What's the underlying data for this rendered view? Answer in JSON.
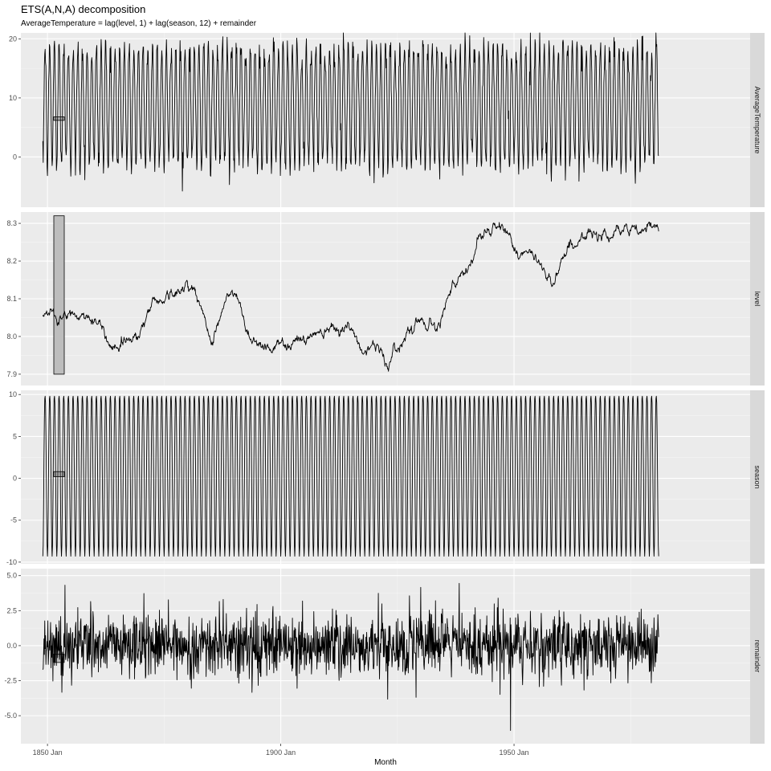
{
  "chart_data": {
    "type": "line",
    "title": "ETS(A,N,A) decomposition",
    "subtitle": "AverageTemperature = lag(level, 1) + lag(season, 12) + remainder",
    "xlabel": "Month",
    "x_ticks": [
      "1850 Jan",
      "1900 Jan",
      "1950 Jan"
    ],
    "x_range": [
      1844.3,
      2000.6
    ],
    "x_start": 1849.0,
    "x_end": 1981.0,
    "grid": true,
    "panels": [
      {
        "name": "AverageTemperature",
        "ylim": [
          -8.5,
          21.0
        ],
        "y_ticks": [
          0,
          10,
          20
        ],
        "y_tick_labels": [
          "0",
          "10",
          "20"
        ],
        "scale_bar": [
          6.2,
          6.8
        ],
        "series": {
          "kind": "seasonal",
          "mean": 8.1,
          "amplitude": 9.5,
          "noise": 1.4
        }
      },
      {
        "name": "level",
        "ylim": [
          7.87,
          8.33
        ],
        "y_ticks": [
          7.9,
          8.0,
          8.1,
          8.2,
          8.3
        ],
        "y_tick_labels": [
          "7.9",
          "8.0",
          "8.1",
          "8.2",
          "8.3"
        ],
        "scale_bar": [
          7.9,
          8.32
        ],
        "series": {
          "kind": "walk",
          "anchors": [
            [
              1849.0,
              8.05
            ],
            [
              1855.0,
              8.05
            ],
            [
              1859.0,
              8.06
            ],
            [
              1862.0,
              7.98
            ],
            [
              1865.0,
              7.98
            ],
            [
              1869.0,
              8.02
            ],
            [
              1872.0,
              8.1
            ],
            [
              1876.0,
              8.12
            ],
            [
              1878.0,
              8.1
            ],
            [
              1879.5,
              8.17
            ],
            [
              1881.0,
              8.12
            ],
            [
              1884.0,
              7.97
            ],
            [
              1886.0,
              8.05
            ],
            [
              1888.0,
              8.12
            ],
            [
              1890.0,
              8.1
            ],
            [
              1892.0,
              8.0
            ],
            [
              1896.0,
              7.98
            ],
            [
              1899.0,
              7.97
            ],
            [
              1902.0,
              8.0
            ],
            [
              1905.0,
              7.99
            ],
            [
              1908.0,
              8.03
            ],
            [
              1911.0,
              8.05
            ],
            [
              1914.0,
              8.02
            ],
            [
              1917.0,
              7.95
            ],
            [
              1919.0,
              8.0
            ],
            [
              1922.0,
              7.92
            ],
            [
              1925.0,
              7.98
            ],
            [
              1927.0,
              8.05
            ],
            [
              1930.0,
              8.05
            ],
            [
              1933.0,
              8.02
            ],
            [
              1934.5,
              8.14
            ],
            [
              1937.0,
              8.13
            ],
            [
              1940.0,
              8.18
            ],
            [
              1942.0,
              8.29
            ],
            [
              1946.0,
              8.28
            ],
            [
              1948.0,
              8.28
            ],
            [
              1950.0,
              8.22
            ],
            [
              1953.0,
              8.2
            ],
            [
              1956.0,
              8.18
            ],
            [
              1958.0,
              8.14
            ],
            [
              1960.0,
              8.24
            ],
            [
              1963.0,
              8.25
            ],
            [
              1966.0,
              8.26
            ],
            [
              1969.0,
              8.3
            ],
            [
              1972.0,
              8.28
            ],
            [
              1975.0,
              8.27
            ],
            [
              1978.0,
              8.28
            ],
            [
              1981.0,
              8.28
            ]
          ]
        }
      },
      {
        "name": "season",
        "ylim": [
          -10.2,
          10.5
        ],
        "y_ticks": [
          -10,
          -5,
          0,
          5,
          10
        ],
        "y_tick_labels": [
          "-10",
          "-5",
          "0",
          "5",
          "10"
        ],
        "scale_bar": [
          0.2,
          0.8
        ],
        "series": {
          "kind": "seasonal_pure",
          "max": 9.8,
          "min": -9.3
        }
      },
      {
        "name": "remainder",
        "ylim": [
          -7.0,
          5.5
        ],
        "y_ticks": [
          -5,
          -2.5,
          0,
          2.5,
          5
        ],
        "y_tick_labels": [
          "-5.0",
          "-2.5",
          "0.0",
          "2.5",
          "5.0"
        ],
        "scale_bar": [
          -1.2,
          -0.6
        ],
        "series": {
          "kind": "noise",
          "sd": 1.15
        }
      }
    ]
  }
}
